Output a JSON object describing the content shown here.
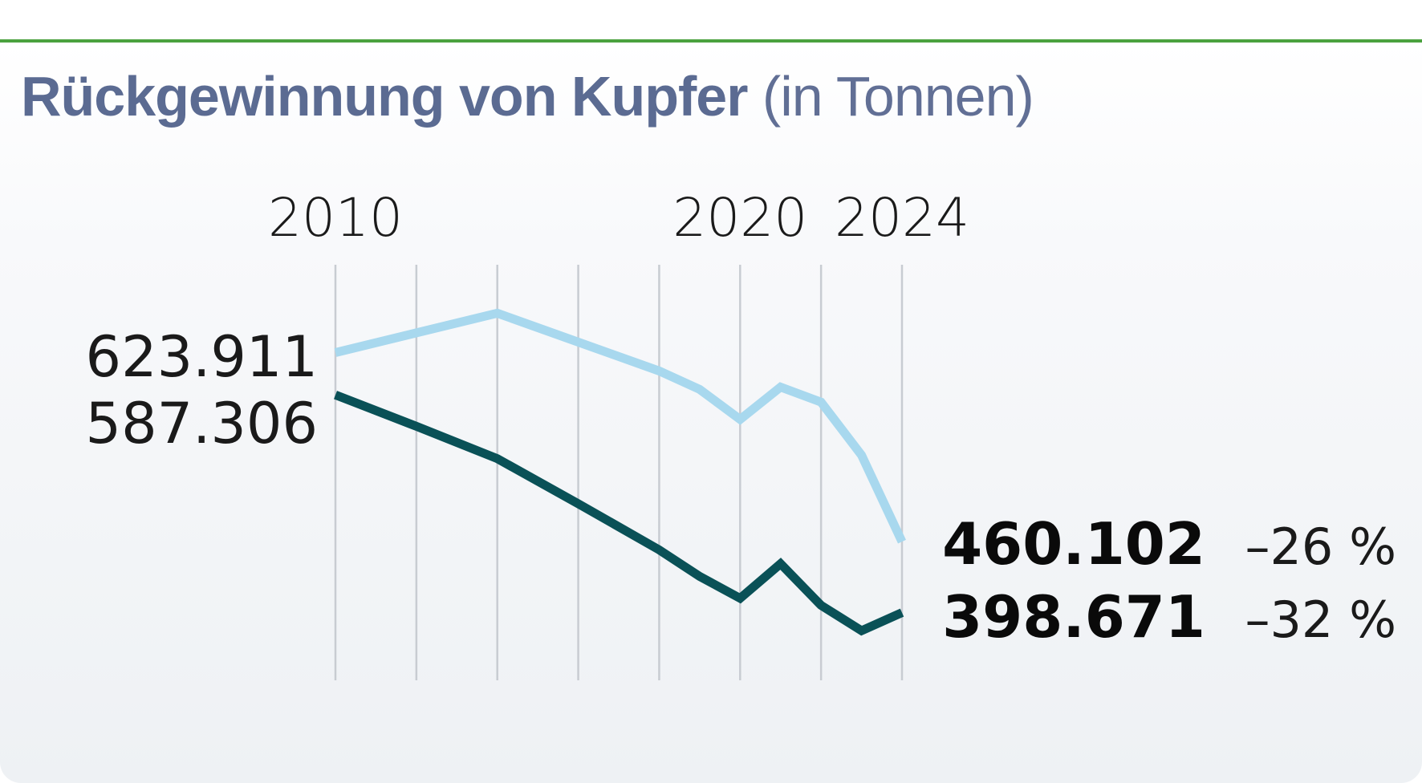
{
  "title": {
    "main": "Rückgewinnung von Kupfer",
    "unit": "(in Tonnen)"
  },
  "colors": {
    "title": "#5b6b92",
    "rule": "#4ba23f",
    "grid": "#c8ccd2",
    "series_light": "#a8d8ee",
    "series_dark": "#0a5157"
  },
  "chart_data": {
    "type": "line",
    "x_tick_labels": [
      "2010",
      "2020",
      "2024"
    ],
    "x": [
      2010,
      2012,
      2014,
      2016,
      2018,
      2019,
      2020,
      2021,
      2022,
      2023,
      2024
    ],
    "xlim": [
      2010,
      2024
    ],
    "ylim": [
      340000,
      700000
    ],
    "grid": "vertical",
    "series": [
      {
        "key": "light",
        "color": "#a8d8ee",
        "values": [
          623911,
          641000,
          658000,
          633000,
          608000,
          592000,
          566000,
          594000,
          581000,
          535000,
          460102
        ],
        "start_label": "623.911",
        "end_label": "460.102",
        "change_label": "–26 %"
      },
      {
        "key": "dark",
        "color": "#0a5157",
        "values": [
          587306,
          560000,
          532000,
          493000,
          453000,
          430000,
          411000,
          441000,
          405000,
          383000,
          398671
        ],
        "start_label": "587.306",
        "end_label": "398.671",
        "change_label": "–32 %"
      }
    ]
  }
}
